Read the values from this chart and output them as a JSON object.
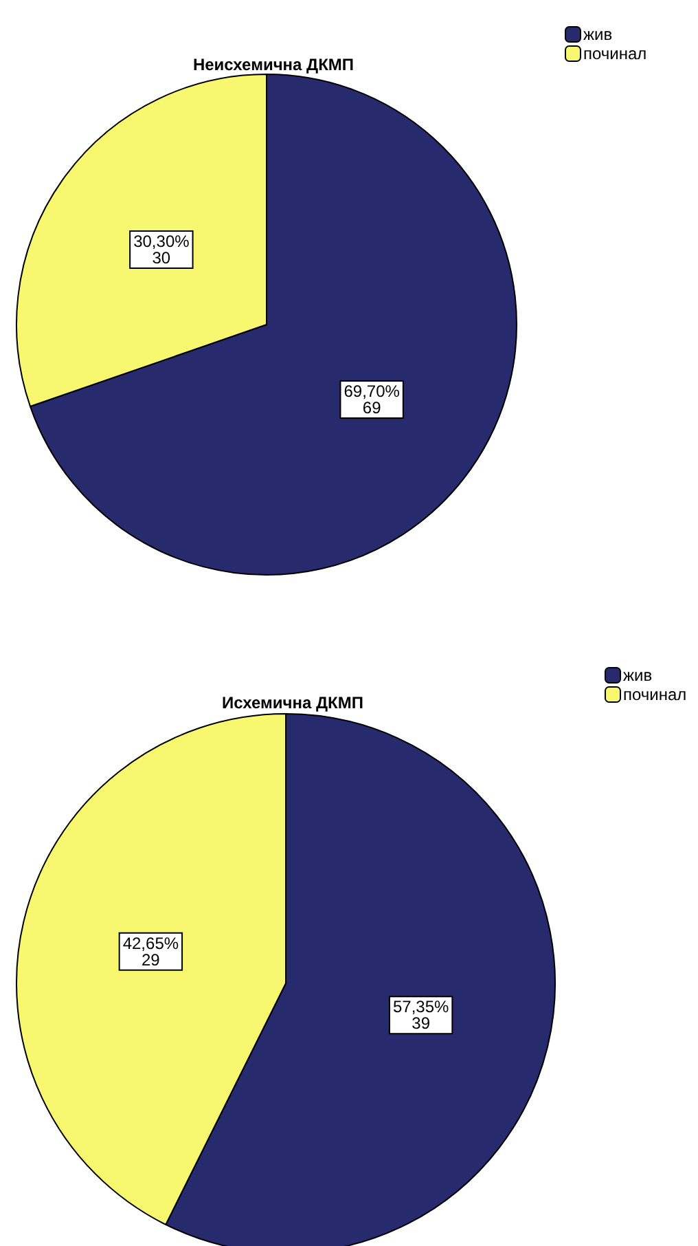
{
  "chart_data": [
    {
      "type": "pie",
      "title": "Неисхемична ДКМП",
      "categories": [
        "жив",
        "починал"
      ],
      "values": [
        69,
        30
      ],
      "colors": [
        "#282a6e",
        "#f8f870"
      ],
      "value_labels": [
        "69,70%\n69",
        "30,30%\n30"
      ],
      "legend": "top right"
    },
    {
      "type": "pie",
      "title": "Исхемична ДКМП",
      "categories": [
        "жив",
        "починал"
      ],
      "values": [
        39,
        29
      ],
      "colors": [
        "#282a6e",
        "#f8f870"
      ],
      "value_labels": [
        "57,35%\n39",
        "42,65%\n29"
      ],
      "legend": "top right"
    }
  ]
}
